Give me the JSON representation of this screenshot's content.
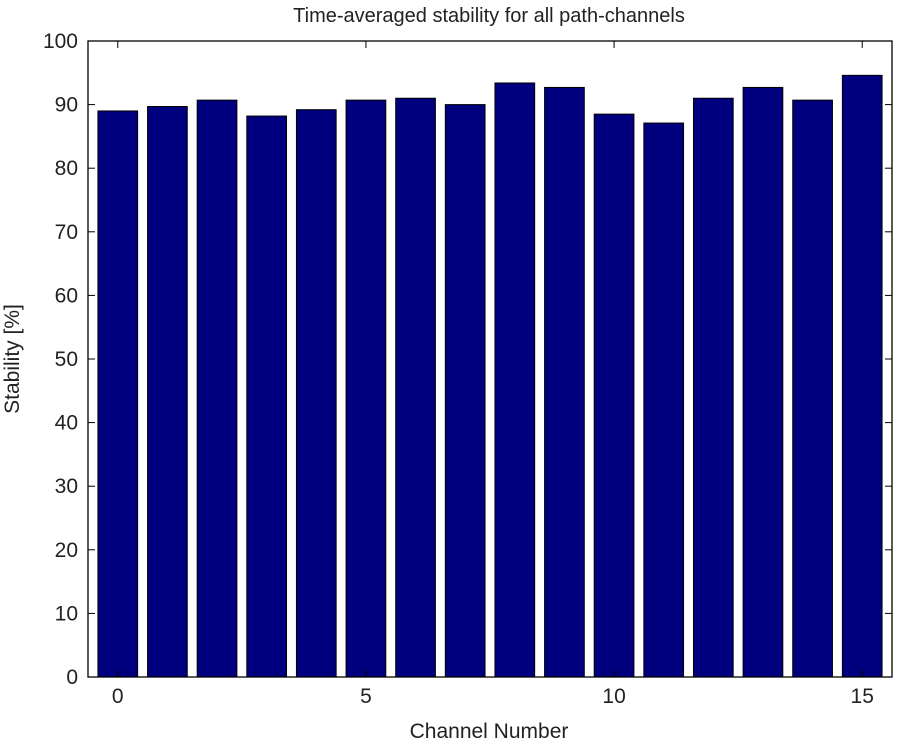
{
  "chart_data": {
    "type": "bar",
    "title": "Time-averaged stability for all path-channels",
    "xlabel": "Channel Number",
    "ylabel": "Stability [%]",
    "categories": [
      0,
      1,
      2,
      3,
      4,
      5,
      6,
      7,
      8,
      9,
      10,
      11,
      12,
      13,
      14,
      15
    ],
    "values": [
      89.0,
      89.7,
      90.7,
      88.2,
      89.2,
      90.7,
      91.0,
      90.0,
      93.4,
      92.7,
      88.5,
      87.1,
      91.0,
      92.7,
      90.7,
      94.6
    ],
    "xlim": [
      -0.6,
      15.6
    ],
    "ylim": [
      0,
      100
    ],
    "x_ticks": [
      0,
      5,
      10,
      15
    ],
    "y_ticks": [
      0,
      10,
      20,
      30,
      40,
      50,
      60,
      70,
      80,
      90,
      100
    ],
    "grid": false,
    "legend": "none",
    "bar_color": "#00007f",
    "axis_color": "#000000"
  }
}
